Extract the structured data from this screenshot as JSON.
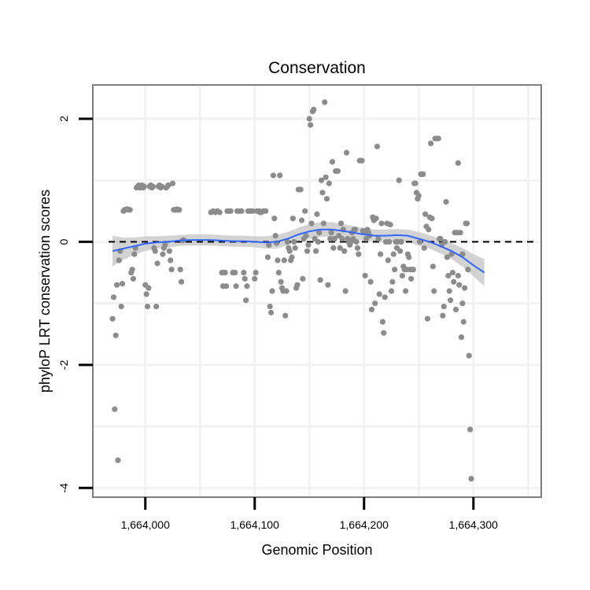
{
  "chart_data": {
    "type": "scatter",
    "title": "Conservation",
    "xlabel": "Genomic Position",
    "ylabel": "phyloP LRT conservation scores",
    "xlim": [
      1663952,
      1664362
    ],
    "ylim": [
      -4.15,
      2.55
    ],
    "x_ticks": [
      1664000,
      1664100,
      1664200,
      1664300
    ],
    "x_tick_labels": [
      "1,664,000",
      "1,664,100",
      "1,664,200",
      "1,664,300"
    ],
    "y_ticks": [
      -4,
      -2,
      0,
      2
    ],
    "y_tick_labels": [
      "-4",
      "-2",
      "0",
      "2"
    ],
    "grid": true,
    "colors": {
      "points": "#8c8c8c",
      "smooth_line": "#3366ff",
      "ribbon": "#c8c8c8",
      "reference_line": "#000000",
      "grid": "#f2f2f2",
      "panel_border": "#7f7f7f"
    },
    "reference_line_y": 0,
    "points": [
      [
        1663970,
        -1.25
      ],
      [
        1663971,
        -0.9
      ],
      [
        1663972,
        -2.72
      ],
      [
        1663973,
        -1.52
      ],
      [
        1663974,
        -0.7
      ],
      [
        1663975,
        -3.55
      ],
      [
        1663976,
        -0.3
      ],
      [
        1663977,
        -0.15
      ],
      [
        1663978,
        -1.05
      ],
      [
        1663979,
        -0.68
      ],
      [
        1663980,
        0.5
      ],
      [
        1663981,
        0.52
      ],
      [
        1663982,
        0.52
      ],
      [
        1663983,
        0.53
      ],
      [
        1663984,
        0.53
      ],
      [
        1663985,
        0.52
      ],
      [
        1663986,
        0.52
      ],
      [
        1663987,
        -0.5
      ],
      [
        1663988,
        -0.45
      ],
      [
        1663989,
        -0.6
      ],
      [
        1663990,
        -0.2
      ],
      [
        1663991,
        -0.1
      ],
      [
        1663992,
        0.88
      ],
      [
        1663993,
        0.9
      ],
      [
        1663994,
        0.92
      ],
      [
        1663995,
        0.88
      ],
      [
        1663996,
        0.9
      ],
      [
        1663997,
        0.92
      ],
      [
        1663998,
        0.88
      ],
      [
        1663999,
        0.9
      ],
      [
        1664000,
        -0.7
      ],
      [
        1664001,
        -0.85
      ],
      [
        1664002,
        -1.05
      ],
      [
        1664003,
        -0.75
      ],
      [
        1664004,
        0.9
      ],
      [
        1664005,
        0.92
      ],
      [
        1664006,
        0.88
      ],
      [
        1664007,
        0.9
      ],
      [
        1664008,
        -0.1
      ],
      [
        1664009,
        -0.15
      ],
      [
        1664010,
        -1.05
      ],
      [
        1664011,
        -0.35
      ],
      [
        1664012,
        0.9
      ],
      [
        1664013,
        0.92
      ],
      [
        1664014,
        0.88
      ],
      [
        1664015,
        0.9
      ],
      [
        1664016,
        -0.2
      ],
      [
        1664017,
        -0.1
      ],
      [
        1664018,
        -0.05
      ],
      [
        1664019,
        0.88
      ],
      [
        1664020,
        0.9
      ],
      [
        1664021,
        0.92
      ],
      [
        1664022,
        -0.15
      ],
      [
        1664023,
        -0.3
      ],
      [
        1664024,
        -0.45
      ],
      [
        1664025,
        0.95
      ],
      [
        1664026,
        0.52
      ],
      [
        1664027,
        0.52
      ],
      [
        1664028,
        0.52
      ],
      [
        1664029,
        0.53
      ],
      [
        1664030,
        0.52
      ],
      [
        1664031,
        0.52
      ],
      [
        1664032,
        -0.45
      ],
      [
        1664033,
        -0.65
      ],
      [
        1664034,
        0.02
      ],
      [
        1664035,
        0.03
      ],
      [
        1664060,
        0.48
      ],
      [
        1664062,
        0.5
      ],
      [
        1664064,
        0.48
      ],
      [
        1664066,
        0.5
      ],
      [
        1664068,
        0.48
      ],
      [
        1664070,
        -0.5
      ],
      [
        1664071,
        -0.72
      ],
      [
        1664072,
        -0.5
      ],
      [
        1664073,
        -0.5
      ],
      [
        1664074,
        -0.72
      ],
      [
        1664075,
        0.5
      ],
      [
        1664076,
        0.5
      ],
      [
        1664078,
        0.5
      ],
      [
        1664080,
        -0.5
      ],
      [
        1664081,
        -0.5
      ],
      [
        1664082,
        -0.5
      ],
      [
        1664083,
        -0.72
      ],
      [
        1664084,
        0.5
      ],
      [
        1664086,
        0.5
      ],
      [
        1664088,
        0.5
      ],
      [
        1664090,
        -0.5
      ],
      [
        1664091,
        -0.6
      ],
      [
        1664092,
        -0.95
      ],
      [
        1664093,
        -0.72
      ],
      [
        1664094,
        0.5
      ],
      [
        1664096,
        0.5
      ],
      [
        1664098,
        0.5
      ],
      [
        1664100,
        -0.6
      ],
      [
        1664101,
        -0.5
      ],
      [
        1664102,
        0.5
      ],
      [
        1664104,
        0.5
      ],
      [
        1664105,
        0.48
      ],
      [
        1664106,
        0.48
      ],
      [
        1664108,
        0.5
      ],
      [
        1664110,
        0.5
      ],
      [
        1664112,
        -0.25
      ],
      [
        1664113,
        -0.05
      ],
      [
        1664114,
        -1.05
      ],
      [
        1664115,
        -1.15
      ],
      [
        1664116,
        -0.8
      ],
      [
        1664117,
        1.08
      ],
      [
        1664118,
        0.38
      ],
      [
        1664119,
        0.1
      ],
      [
        1664120,
        -0.02
      ],
      [
        1664121,
        -0.3
      ],
      [
        1664122,
        -0.5
      ],
      [
        1664123,
        1.08
      ],
      [
        1664124,
        -0.65
      ],
      [
        1664125,
        -0.75
      ],
      [
        1664126,
        -0.8
      ],
      [
        1664127,
        -0.3
      ],
      [
        1664128,
        -1.2
      ],
      [
        1664129,
        -0.8
      ],
      [
        1664130,
        0.0
      ],
      [
        1664131,
        -0.1
      ],
      [
        1664132,
        -0.15
      ],
      [
        1664133,
        -0.3
      ],
      [
        1664134,
        -0.25
      ],
      [
        1664135,
        0.38
      ],
      [
        1664136,
        0.0
      ],
      [
        1664137,
        -0.1
      ],
      [
        1664138,
        -0.75
      ],
      [
        1664139,
        -0.7
      ],
      [
        1664140,
        0.85
      ],
      [
        1664141,
        0.85
      ],
      [
        1664142,
        0.85
      ],
      [
        1664143,
        0.35
      ],
      [
        1664144,
        -0.6
      ],
      [
        1664145,
        0.05
      ],
      [
        1664146,
        0.5
      ],
      [
        1664147,
        0.1
      ],
      [
        1664148,
        -0.15
      ],
      [
        1664149,
        -0.05
      ],
      [
        1664150,
        2.0
      ],
      [
        1664151,
        1.9
      ],
      [
        1664152,
        0.3
      ],
      [
        1664153,
        2.12
      ],
      [
        1664154,
        2.15
      ],
      [
        1664155,
        0.05
      ],
      [
        1664156,
        -0.15
      ],
      [
        1664157,
        0.45
      ],
      [
        1664158,
        0.0
      ],
      [
        1664159,
        0.15
      ],
      [
        1664160,
        -0.62
      ],
      [
        1664161,
        1.0
      ],
      [
        1664162,
        0.8
      ],
      [
        1664163,
        0.3
      ],
      [
        1664164,
        2.27
      ],
      [
        1664165,
        1.05
      ],
      [
        1664166,
        0.7
      ],
      [
        1664167,
        -0.7
      ],
      [
        1664168,
        0.95
      ],
      [
        1664169,
        0.05
      ],
      [
        1664170,
        0.15
      ],
      [
        1664171,
        1.3
      ],
      [
        1664172,
        -0.1
      ],
      [
        1664173,
        0.05
      ],
      [
        1664174,
        1.15
      ],
      [
        1664175,
        1.15
      ],
      [
        1664176,
        1.15
      ],
      [
        1664177,
        0.1
      ],
      [
        1664178,
        -0.1
      ],
      [
        1664179,
        0.3
      ],
      [
        1664180,
        0.05
      ],
      [
        1664181,
        0.2
      ],
      [
        1664182,
        -0.15
      ],
      [
        1664183,
        -0.8
      ],
      [
        1664184,
        1.45
      ],
      [
        1664185,
        0.05
      ],
      [
        1664186,
        0.0
      ],
      [
        1664187,
        -0.05
      ],
      [
        1664188,
        0.0
      ],
      [
        1664189,
        0.15
      ],
      [
        1664190,
        0.05
      ],
      [
        1664191,
        0.2
      ],
      [
        1664192,
        0.2
      ],
      [
        1664193,
        0.0
      ],
      [
        1664194,
        -0.1
      ],
      [
        1664195,
        -0.2
      ],
      [
        1664196,
        1.32
      ],
      [
        1664197,
        1.32
      ],
      [
        1664198,
        1.32
      ],
      [
        1664199,
        0.18
      ],
      [
        1664200,
        0.15
      ],
      [
        1664201,
        -0.55
      ],
      [
        1664202,
        0.05
      ],
      [
        1664203,
        0.2
      ],
      [
        1664204,
        0.15
      ],
      [
        1664205,
        0.1
      ],
      [
        1664206,
        -0.65
      ],
      [
        1664207,
        -1.1
      ],
      [
        1664208,
        0.4
      ],
      [
        1664209,
        0.35
      ],
      [
        1664210,
        -1.0
      ],
      [
        1664211,
        0.38
      ],
      [
        1664212,
        1.55
      ],
      [
        1664213,
        0.05
      ],
      [
        1664214,
        -0.85
      ],
      [
        1664215,
        -0.2
      ],
      [
        1664216,
        0.3
      ],
      [
        1664217,
        -1.3
      ],
      [
        1664218,
        -1.48
      ],
      [
        1664219,
        -0.9
      ],
      [
        1664220,
        0.0
      ],
      [
        1664221,
        0.3
      ],
      [
        1664222,
        -0.3
      ],
      [
        1664223,
        0.0
      ],
      [
        1664224,
        0.28
      ],
      [
        1664225,
        -0.8
      ],
      [
        1664226,
        -0.65
      ],
      [
        1664227,
        -0.2
      ],
      [
        1664228,
        -0.45
      ],
      [
        1664229,
        0.0
      ],
      [
        1664230,
        -0.1
      ],
      [
        1664231,
        0.0
      ],
      [
        1664232,
        1.0
      ],
      [
        1664233,
        -0.15
      ],
      [
        1664234,
        0.0
      ],
      [
        1664235,
        -0.55
      ],
      [
        1664236,
        -0.4
      ],
      [
        1664237,
        -0.45
      ],
      [
        1664238,
        -0.8
      ],
      [
        1664239,
        -0.45
      ],
      [
        1664240,
        -0.2
      ],
      [
        1664241,
        -0.25
      ],
      [
        1664242,
        -0.45
      ],
      [
        1664243,
        -0.6
      ],
      [
        1664244,
        -0.45
      ],
      [
        1664245,
        -0.45
      ],
      [
        1664246,
        0.95
      ],
      [
        1664247,
        0.95
      ],
      [
        1664248,
        0.8
      ],
      [
        1664249,
        0.7
      ],
      [
        1664250,
        0.75
      ],
      [
        1664251,
        0.0
      ],
      [
        1664252,
        1.1
      ],
      [
        1664253,
        1.1
      ],
      [
        1664254,
        1.1
      ],
      [
        1664255,
        -0.1
      ],
      [
        1664256,
        0.45
      ],
      [
        1664257,
        0.25
      ],
      [
        1664258,
        -1.25
      ],
      [
        1664259,
        0.2
      ],
      [
        1664260,
        0.4
      ],
      [
        1664261,
        1.6
      ],
      [
        1664262,
        0.38
      ],
      [
        1664263,
        -0.4
      ],
      [
        1664264,
        -0.8
      ],
      [
        1664265,
        1.68
      ],
      [
        1664266,
        1.68
      ],
      [
        1664267,
        1.68
      ],
      [
        1664268,
        1.68
      ],
      [
        1664269,
        0.05
      ],
      [
        1664270,
        0.05
      ],
      [
        1664271,
        -0.05
      ],
      [
        1664272,
        -1.2
      ],
      [
        1664273,
        -1.05
      ],
      [
        1664274,
        0.0
      ],
      [
        1664275,
        0.65
      ],
      [
        1664276,
        -0.25
      ],
      [
        1664277,
        -0.55
      ],
      [
        1664278,
        -0.8
      ],
      [
        1664279,
        -0.95
      ],
      [
        1664280,
        -0.2
      ],
      [
        1664281,
        -0.5
      ],
      [
        1664282,
        -0.65
      ],
      [
        1664283,
        0.15
      ],
      [
        1664284,
        -1.1
      ],
      [
        1664285,
        0.15
      ],
      [
        1664286,
        -0.55
      ],
      [
        1664287,
        -0.7
      ],
      [
        1664288,
        0.15
      ],
      [
        1664289,
        -1.55
      ],
      [
        1664290,
        -1.0
      ],
      [
        1664291,
        -1.3
      ],
      [
        1664292,
        -0.75
      ],
      [
        1664293,
        0.3
      ],
      [
        1664294,
        0.3
      ],
      [
        1664295,
        -0.45
      ],
      [
        1664296,
        -1.85
      ],
      [
        1664297,
        -3.05
      ],
      [
        1664298,
        -3.85
      ],
      [
        1664286,
        1.28
      ],
      [
        1664290,
        -0.2
      ]
    ],
    "smooth_line": [
      [
        1663970,
        -0.15
      ],
      [
        1663980,
        -0.11
      ],
      [
        1663990,
        -0.07
      ],
      [
        1664000,
        -0.03
      ],
      [
        1664010,
        -0.01
      ],
      [
        1664020,
        0.0
      ],
      [
        1664030,
        0.02
      ],
      [
        1664040,
        0.03
      ],
      [
        1664050,
        0.03
      ],
      [
        1664060,
        0.03
      ],
      [
        1664070,
        0.02
      ],
      [
        1664080,
        0.01
      ],
      [
        1664090,
        0.01
      ],
      [
        1664100,
        0.0
      ],
      [
        1664110,
        -0.01
      ],
      [
        1664120,
        0.0
      ],
      [
        1664130,
        0.05
      ],
      [
        1664140,
        0.12
      ],
      [
        1664150,
        0.17
      ],
      [
        1664160,
        0.2
      ],
      [
        1664170,
        0.2
      ],
      [
        1664180,
        0.18
      ],
      [
        1664190,
        0.15
      ],
      [
        1664200,
        0.12
      ],
      [
        1664210,
        0.1
      ],
      [
        1664220,
        0.1
      ],
      [
        1664230,
        0.11
      ],
      [
        1664240,
        0.1
      ],
      [
        1664250,
        0.05
      ],
      [
        1664260,
        0.0
      ],
      [
        1664270,
        -0.07
      ],
      [
        1664280,
        -0.15
      ],
      [
        1664290,
        -0.25
      ],
      [
        1664300,
        -0.38
      ],
      [
        1664310,
        -0.5
      ]
    ],
    "ribbon_halfwidth": [
      0.25,
      0.18,
      0.14,
      0.12,
      0.1,
      0.1,
      0.09,
      0.09,
      0.09,
      0.09,
      0.09,
      0.09,
      0.09,
      0.09,
      0.1,
      0.11,
      0.11,
      0.11,
      0.12,
      0.12,
      0.12,
      0.11,
      0.11,
      0.1,
      0.1,
      0.1,
      0.1,
      0.1,
      0.11,
      0.11,
      0.12,
      0.13,
      0.15,
      0.18,
      0.22
    ]
  }
}
